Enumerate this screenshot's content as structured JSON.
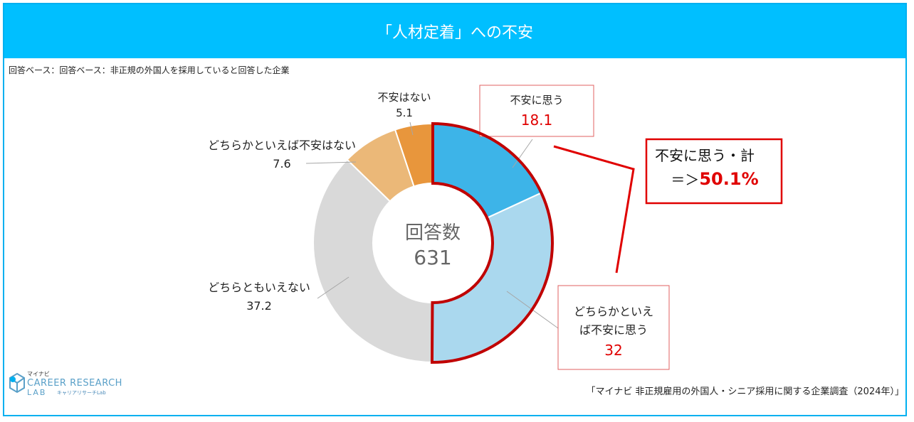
{
  "title": "「人材定着」への不安",
  "base_note": "回答ベース：回答ベース：非正規の外国人を採用していると回答した企業",
  "source": "「マイナビ 非正規雇用の外国人・シニア採用に関する企業調査（2024年）」",
  "logo": {
    "jp_top": "マイナビ",
    "en_line1": "CAREER RESEARCH",
    "en_line2": "LAB",
    "jp_small": "キャリアリサーチLab"
  },
  "center_label": {
    "title": "回答数",
    "value": "631"
  },
  "callout": {
    "line1": "不安に思う・計",
    "line2_prefix": "＝＞",
    "line2_value": "50.1%"
  },
  "colors": {
    "header": "#00bfff",
    "highlight": "#c00000",
    "value_red": "#e00000"
  },
  "chart_data": {
    "type": "pie",
    "donut": true,
    "total_responses": 631,
    "series": [
      {
        "name": "不安に思う",
        "value": 18.1,
        "color": "#3db4e8"
      },
      {
        "name": "どちらかといえば不安に思う",
        "value": 32.0,
        "color": "#aad8ee"
      },
      {
        "name": "どちらともいえない",
        "value": 37.2,
        "color": "#d9d9d9"
      },
      {
        "name": "どちらかといえば不安はない",
        "value": 7.6,
        "color": "#ebb878"
      },
      {
        "name": "不安はない",
        "value": 5.1,
        "color": "#e8963c"
      }
    ]
  }
}
